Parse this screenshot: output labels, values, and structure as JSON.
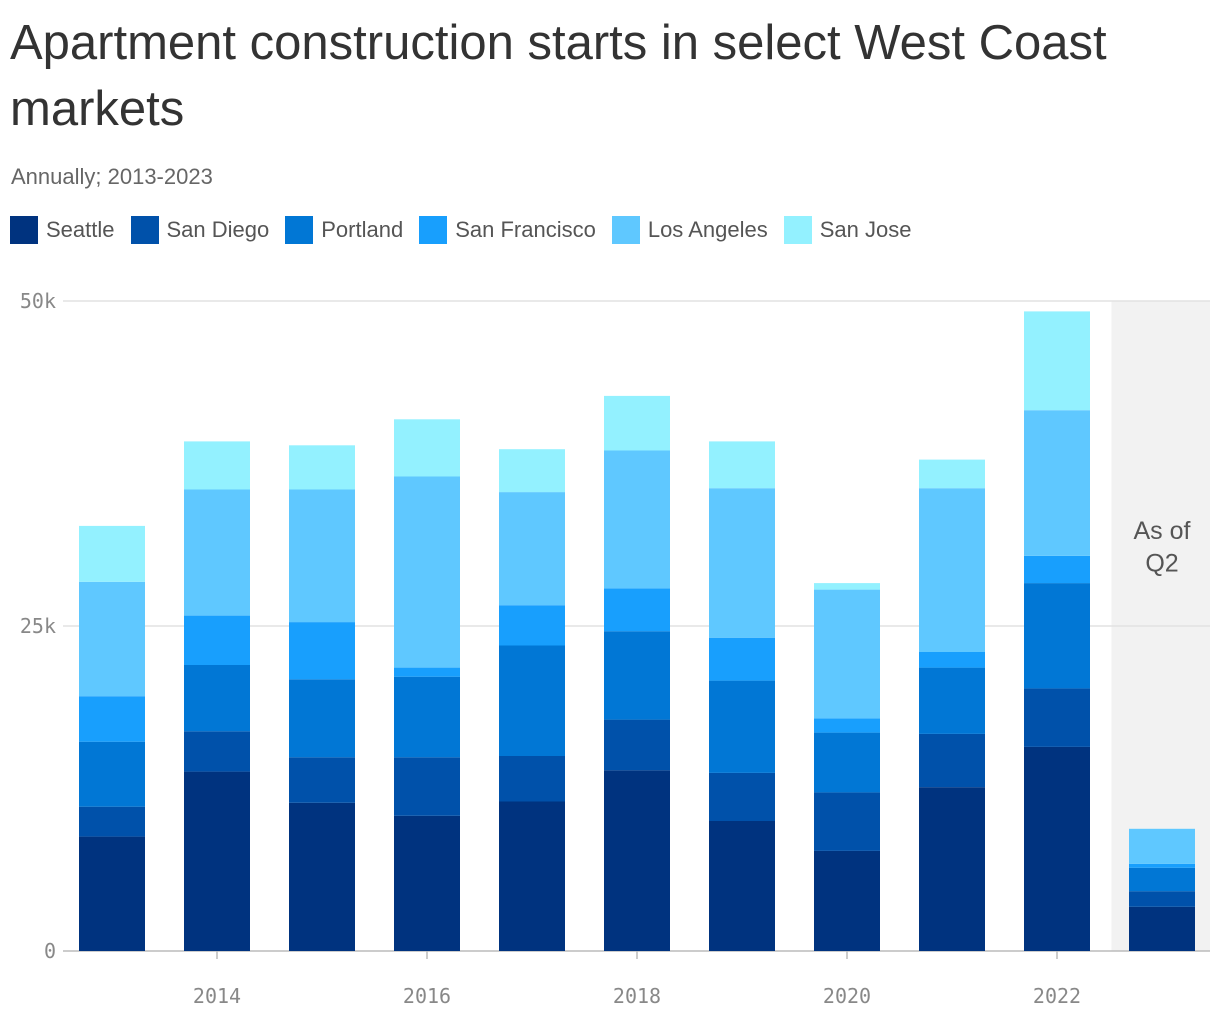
{
  "title": "Apartment construction starts in select West Coast markets",
  "subtitle": "Annually; 2013-2023",
  "annotation": {
    "line1": "As of",
    "line2": "Q2"
  },
  "chart_data": {
    "type": "bar",
    "stacked": true,
    "categories": [
      2013,
      2014,
      2015,
      2016,
      2017,
      2018,
      2019,
      2020,
      2021,
      2022,
      2023
    ],
    "x_tick_labels": [
      "2014",
      "2016",
      "2018",
      "2020",
      "2022"
    ],
    "x_tick_values": [
      2014,
      2016,
      2018,
      2020,
      2022
    ],
    "y_ticks": [
      0,
      25000,
      50000
    ],
    "y_tick_labels": [
      "0",
      "25k",
      "50k"
    ],
    "ylim": [
      0,
      50000
    ],
    "grid": true,
    "legend_position": "top",
    "highlight_category": 2023,
    "series": [
      {
        "name": "Seattle",
        "color": "#00337f",
        "values": [
          8800,
          13800,
          11400,
          10400,
          11500,
          13900,
          10000,
          7700,
          12600,
          15700,
          3400
        ]
      },
      {
        "name": "San Diego",
        "color": "#0051aa",
        "values": [
          2300,
          3100,
          3500,
          4500,
          3500,
          3900,
          3700,
          4500,
          4100,
          4500,
          1200
        ]
      },
      {
        "name": "Portland",
        "color": "#0177d5",
        "values": [
          5000,
          5100,
          6000,
          6200,
          8500,
          6800,
          7100,
          4600,
          5100,
          8100,
          1800
        ]
      },
      {
        "name": "San Francisco",
        "color": "#189ffd",
        "values": [
          3500,
          3800,
          4400,
          700,
          3100,
          3300,
          3300,
          1100,
          1200,
          2100,
          300
        ]
      },
      {
        "name": "Los Angeles",
        "color": "#5fc8ff",
        "values": [
          8800,
          9700,
          10200,
          14700,
          8700,
          10600,
          11500,
          9900,
          12600,
          11200,
          2700
        ]
      },
      {
        "name": "San Jose",
        "color": "#93f1ff",
        "values": [
          4300,
          3700,
          3400,
          4400,
          3300,
          4200,
          3600,
          500,
          2200,
          7600,
          0
        ]
      }
    ]
  }
}
